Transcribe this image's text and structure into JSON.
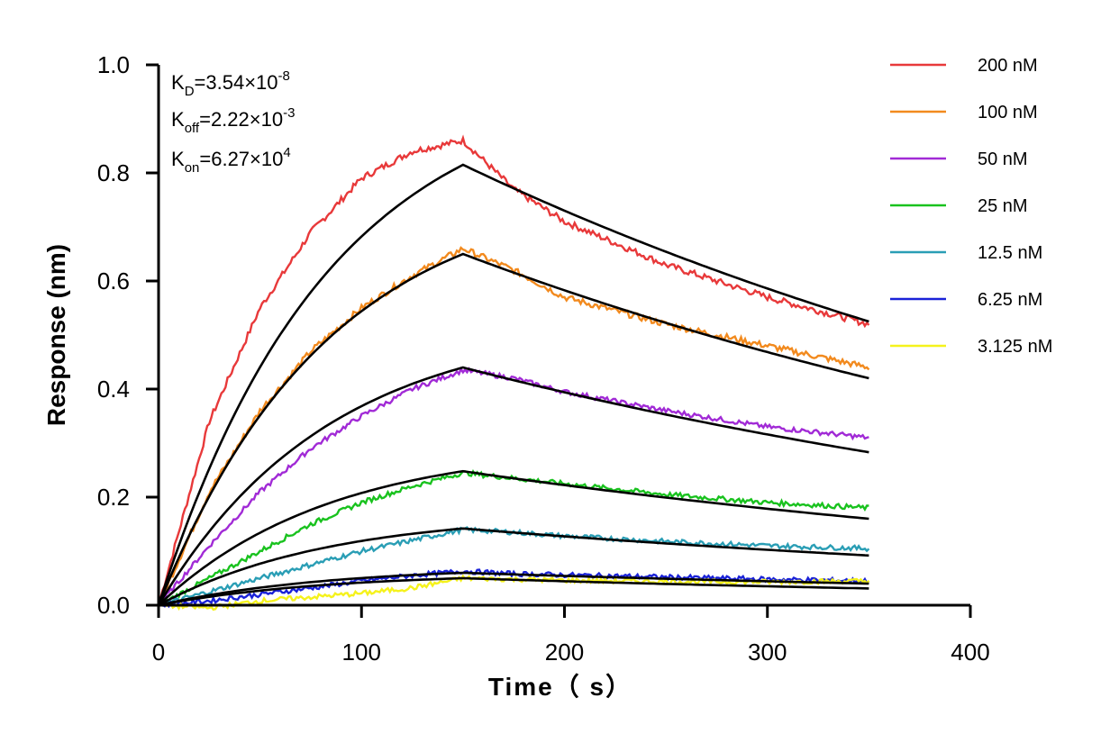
{
  "chart_data": {
    "type": "line",
    "xlabel": "Time（ s）",
    "ylabel": "Response (nm)",
    "xlim": [
      0,
      400
    ],
    "ylim": [
      0,
      1.0
    ],
    "x_ticks": [
      "0",
      "100",
      "200",
      "300",
      "400"
    ],
    "y_ticks": [
      "0.0",
      "0.2",
      "0.4",
      "0.6",
      "0.8",
      "1.0"
    ],
    "grid": false,
    "legend_position": "top-right",
    "annotations": {
      "kd": {
        "base": "K",
        "sub": "D",
        "value": "=3.54×10",
        "exp": "-8"
      },
      "koff": {
        "base": "K",
        "sub": "off",
        "value": "=2.22×10",
        "exp": "-3"
      },
      "kon": {
        "base": "K",
        "sub": "on",
        "value": "=6.27×10",
        "exp": "4"
      }
    },
    "association_end": 150,
    "time_end": 350,
    "fit_color": "#000000",
    "series": [
      {
        "name": "200 nM",
        "color": "#e8393a",
        "fit_peak": 0.815,
        "fit_end": 0.525,
        "measured": {
          "x": [
            0,
            25,
            50,
            75,
            100,
            125,
            150,
            175,
            200,
            250,
            300,
            350
          ],
          "y": [
            0,
            0.34,
            0.55,
            0.69,
            0.79,
            0.84,
            0.86,
            0.77,
            0.71,
            0.63,
            0.57,
            0.52
          ]
        }
      },
      {
        "name": "100 nM",
        "color": "#f28a1e",
        "fit_peak": 0.65,
        "fit_end": 0.42,
        "measured": {
          "x": [
            0,
            25,
            50,
            75,
            100,
            125,
            150,
            175,
            200,
            250,
            300,
            350
          ],
          "y": [
            0,
            0.21,
            0.36,
            0.47,
            0.55,
            0.61,
            0.66,
            0.62,
            0.57,
            0.52,
            0.48,
            0.44
          ]
        }
      },
      {
        "name": "50 nM",
        "color": "#a12ad6",
        "fit_peak": 0.44,
        "fit_end": 0.283,
        "measured": {
          "x": [
            0,
            25,
            50,
            75,
            100,
            125,
            150,
            175,
            200,
            250,
            300,
            350
          ],
          "y": [
            0,
            0.11,
            0.21,
            0.29,
            0.35,
            0.4,
            0.435,
            0.42,
            0.395,
            0.36,
            0.33,
            0.31
          ]
        }
      },
      {
        "name": "25 nM",
        "color": "#19c21e",
        "fit_peak": 0.248,
        "fit_end": 0.16,
        "measured": {
          "x": [
            0,
            25,
            50,
            75,
            100,
            125,
            150,
            175,
            200,
            250,
            300,
            350
          ],
          "y": [
            0,
            0.05,
            0.1,
            0.15,
            0.19,
            0.22,
            0.245,
            0.235,
            0.225,
            0.205,
            0.19,
            0.18
          ]
        }
      },
      {
        "name": "12.5 nM",
        "color": "#2a9eb5",
        "fit_peak": 0.142,
        "fit_end": 0.092,
        "measured": {
          "x": [
            0,
            25,
            50,
            75,
            100,
            125,
            150,
            175,
            200,
            250,
            300,
            350
          ],
          "y": [
            0,
            0.025,
            0.05,
            0.075,
            0.1,
            0.12,
            0.14,
            0.135,
            0.128,
            0.118,
            0.11,
            0.105
          ]
        }
      },
      {
        "name": "6.25 nM",
        "color": "#1a22d8",
        "fit_peak": 0.06,
        "fit_end": 0.04,
        "measured": {
          "x": [
            0,
            25,
            50,
            75,
            100,
            125,
            150,
            175,
            200,
            250,
            300,
            350
          ],
          "y": [
            0,
            0.008,
            0.02,
            0.032,
            0.045,
            0.055,
            0.063,
            0.058,
            0.056,
            0.052,
            0.048,
            0.045
          ]
        }
      },
      {
        "name": "3.125 nM",
        "color": "#f5f21c",
        "fit_peak": 0.05,
        "fit_end": 0.031,
        "measured": {
          "x": [
            0,
            25,
            50,
            75,
            100,
            125,
            150,
            175,
            200,
            250,
            300,
            350
          ],
          "y": [
            0,
            -0.005,
            0.008,
            0.015,
            0.022,
            0.032,
            0.05,
            0.048,
            0.046,
            0.044,
            0.043,
            0.045
          ]
        }
      }
    ]
  }
}
